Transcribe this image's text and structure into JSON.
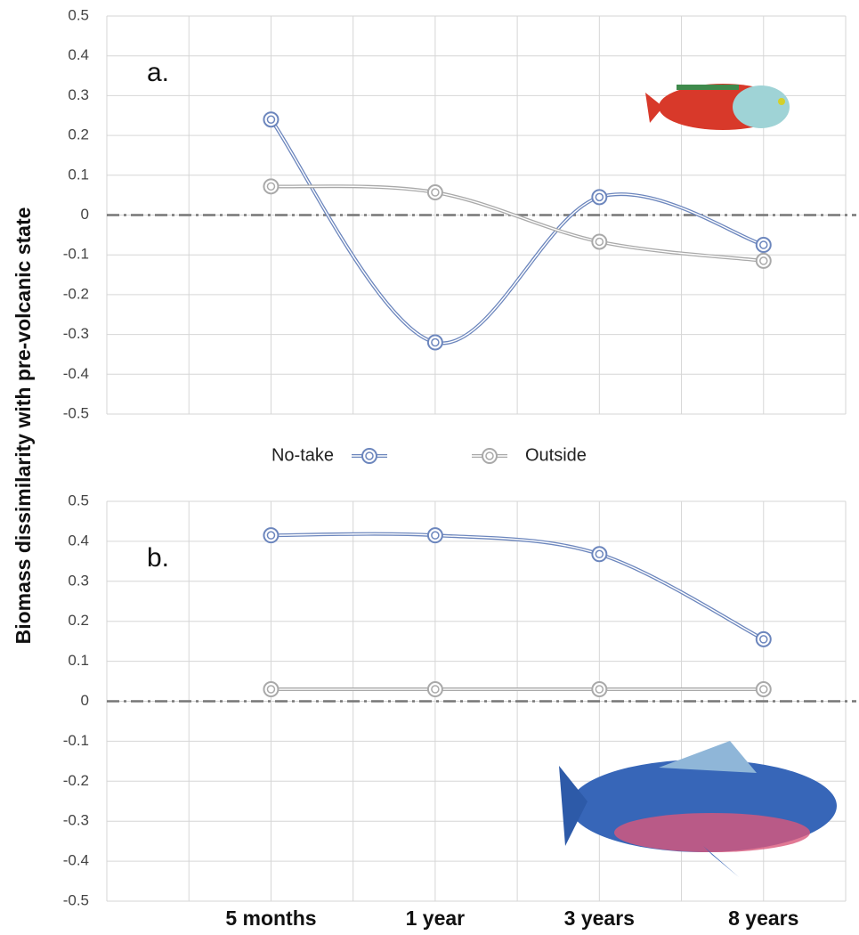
{
  "chart_data": [
    {
      "type": "line",
      "label": "a.",
      "ylabel": "Biomass dissimilarity with pre-volcanic state",
      "ylim": [
        -0.5,
        0.5
      ],
      "yticks": [
        -0.5,
        -0.4,
        -0.3,
        -0.2,
        -0.1,
        0,
        0.1,
        0.2,
        0.3,
        0.4,
        0.5
      ],
      "hline": 0,
      "grid": true,
      "series": [
        {
          "name": "No-take",
          "color": "#6c86bd",
          "values": [
            0.24,
            -0.32,
            0.045,
            -0.075
          ]
        },
        {
          "name": "Outside",
          "color": "#a9a9a9",
          "values": [
            0.072,
            0.057,
            -0.067,
            -0.115
          ]
        }
      ]
    },
    {
      "type": "line",
      "label": "b.",
      "categories": [
        "5 months",
        "1 year",
        "3 years",
        "8 years"
      ],
      "ylim": [
        -0.5,
        0.5
      ],
      "yticks": [
        -0.5,
        -0.4,
        -0.3,
        -0.2,
        -0.1,
        0,
        0.1,
        0.2,
        0.3,
        0.4,
        0.5
      ],
      "hline": 0,
      "grid": true,
      "series": [
        {
          "color": "#6c86bd",
          "values": [
            0.415,
            0.415,
            0.368,
            0.155
          ]
        },
        {
          "color": "#a9a9a9",
          "values": [
            0.03,
            0.03,
            0.03,
            0.03
          ]
        }
      ]
    }
  ]
}
